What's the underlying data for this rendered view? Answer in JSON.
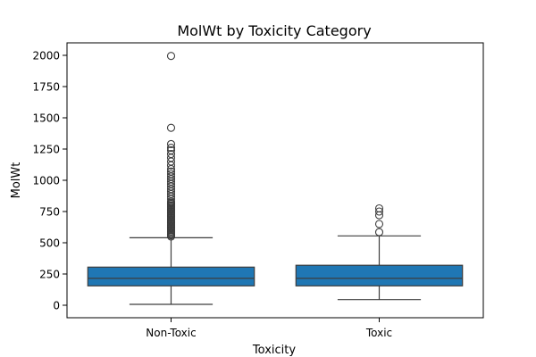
{
  "chart_data": {
    "type": "box",
    "title": "MolWt by Toxicity Category",
    "xlabel": "Toxicity",
    "ylabel": "MolWt",
    "ylim": [
      -100,
      2100
    ],
    "yticks": [
      0,
      250,
      500,
      750,
      1000,
      1250,
      1500,
      1750,
      2000
    ],
    "categories": [
      "Non-Toxic",
      "Toxic"
    ],
    "box_color": "#1f77b4",
    "boxes": [
      {
        "category": "Non-Toxic",
        "whisker_low": 7,
        "q1": 155,
        "median": 215,
        "q3": 305,
        "whisker_high": 540,
        "outliers": [
          550,
          560,
          570,
          580,
          590,
          600,
          610,
          620,
          630,
          640,
          650,
          660,
          670,
          680,
          690,
          700,
          710,
          720,
          730,
          740,
          750,
          760,
          770,
          780,
          790,
          800,
          810,
          820,
          830,
          850,
          870,
          890,
          910,
          930,
          950,
          970,
          990,
          1010,
          1030,
          1050,
          1070,
          1090,
          1120,
          1150,
          1180,
          1210,
          1240,
          1260,
          1290,
          1420,
          1995
        ]
      },
      {
        "category": "Toxic",
        "whisker_low": 45,
        "q1": 155,
        "median": 215,
        "q3": 320,
        "whisker_high": 555,
        "outliers": [
          585,
          650,
          720,
          750,
          775
        ]
      }
    ],
    "grid": false,
    "legend": "none"
  }
}
